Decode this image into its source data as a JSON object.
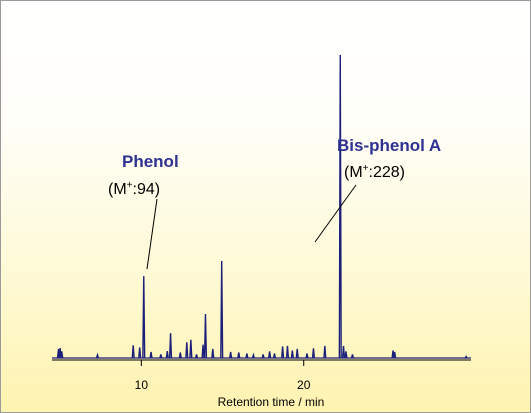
{
  "colors": {
    "trace": "#1b1f7a",
    "compound_label": "#2e3192",
    "axis": "#000000"
  },
  "chart_data": {
    "type": "line",
    "xlabel": "Retention time / min",
    "ylabel": "",
    "xlim": [
      4.5,
      30.3
    ],
    "ylim": [
      0,
      100
    ],
    "xticks": [
      10,
      20
    ],
    "xtick_labels": [
      "10",
      "20"
    ],
    "grid": false,
    "legend": "none",
    "peaks": [
      {
        "x": 4.9,
        "h": 3.0
      },
      {
        "x": 5.0,
        "h": 3.3
      },
      {
        "x": 5.1,
        "h": 2.2
      },
      {
        "x": 7.3,
        "h": 1.0
      },
      {
        "x": 9.5,
        "h": 4.2
      },
      {
        "x": 9.9,
        "h": 3.5
      },
      {
        "x": 10.15,
        "h": 27.0
      },
      {
        "x": 10.6,
        "h": 2.0
      },
      {
        "x": 11.2,
        "h": 1.2
      },
      {
        "x": 11.6,
        "h": 2.3
      },
      {
        "x": 11.8,
        "h": 8.2
      },
      {
        "x": 12.4,
        "h": 1.8
      },
      {
        "x": 12.8,
        "h": 5.2
      },
      {
        "x": 13.05,
        "h": 6.0
      },
      {
        "x": 13.4,
        "h": 1.2
      },
      {
        "x": 13.8,
        "h": 4.4
      },
      {
        "x": 13.95,
        "h": 14.5
      },
      {
        "x": 14.4,
        "h": 3.0
      },
      {
        "x": 14.95,
        "h": 32.0
      },
      {
        "x": 15.5,
        "h": 2.0
      },
      {
        "x": 16.0,
        "h": 1.8
      },
      {
        "x": 16.5,
        "h": 1.5
      },
      {
        "x": 16.9,
        "h": 1.0
      },
      {
        "x": 17.5,
        "h": 1.2
      },
      {
        "x": 17.9,
        "h": 2.2
      },
      {
        "x": 18.2,
        "h": 1.5
      },
      {
        "x": 18.7,
        "h": 3.8
      },
      {
        "x": 19.0,
        "h": 4.0
      },
      {
        "x": 19.3,
        "h": 2.5
      },
      {
        "x": 19.6,
        "h": 3.0
      },
      {
        "x": 20.2,
        "h": 1.5
      },
      {
        "x": 20.6,
        "h": 3.2
      },
      {
        "x": 21.3,
        "h": 4.0
      },
      {
        "x": 22.25,
        "h": 100.0
      },
      {
        "x": 22.45,
        "h": 4.0
      },
      {
        "x": 22.6,
        "h": 2.2
      },
      {
        "x": 23.0,
        "h": 1.2
      },
      {
        "x": 25.5,
        "h": 2.5
      },
      {
        "x": 25.6,
        "h": 2.0
      },
      {
        "x": 30.0,
        "h": 0.5
      }
    ],
    "annotations": [
      {
        "name": "Phenol",
        "ion": "(M",
        "ion_sup": "+",
        "ion_mass": ":94)"
      },
      {
        "name": "Bis-phenol A",
        "ion": "(M",
        "ion_sup": "+",
        "ion_mass": ":228)"
      }
    ]
  }
}
